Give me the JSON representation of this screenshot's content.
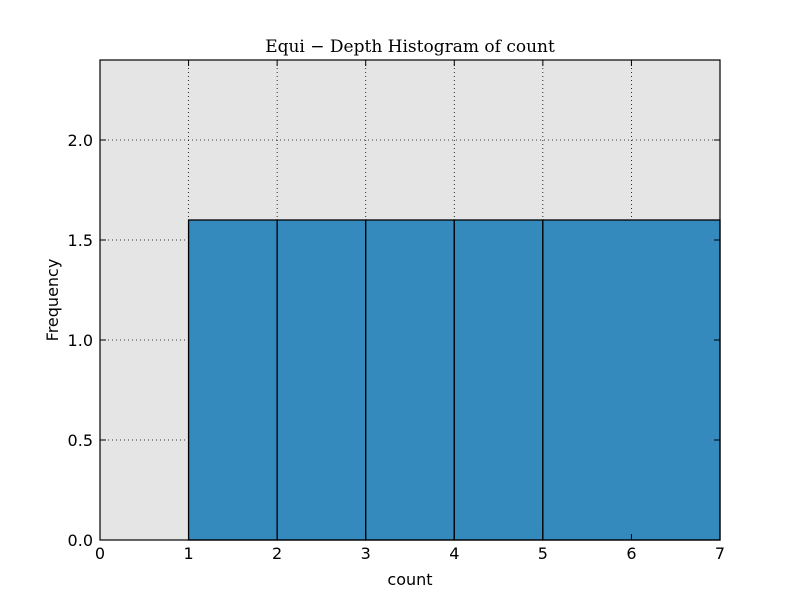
{
  "chart_data": {
    "type": "bar",
    "title": "Equi − Depth Histogram of count",
    "xlabel": "count",
    "ylabel": "Frequency",
    "xlim": [
      0,
      7
    ],
    "ylim": [
      0,
      2.4
    ],
    "xticks": [
      0,
      1,
      2,
      3,
      4,
      5,
      6,
      7
    ],
    "xtick_labels": [
      "0",
      "1",
      "2",
      "3",
      "4",
      "5",
      "6",
      "7"
    ],
    "yticks": [
      0.0,
      0.5,
      1.0,
      1.5,
      2.0
    ],
    "ytick_labels": [
      "0.0",
      "0.5",
      "1.0",
      "1.5",
      "2.0"
    ],
    "bins": [
      {
        "start": 1,
        "end": 2,
        "value": 1.6
      },
      {
        "start": 2,
        "end": 3,
        "value": 1.6
      },
      {
        "start": 3,
        "end": 4,
        "value": 1.6
      },
      {
        "start": 4,
        "end": 5,
        "value": 1.6
      },
      {
        "start": 5,
        "end": 7,
        "value": 1.6
      }
    ],
    "grid": true,
    "colors": {
      "bar": "#348abd",
      "plot_background": "#e5e5e5",
      "edge": "#000000"
    }
  }
}
